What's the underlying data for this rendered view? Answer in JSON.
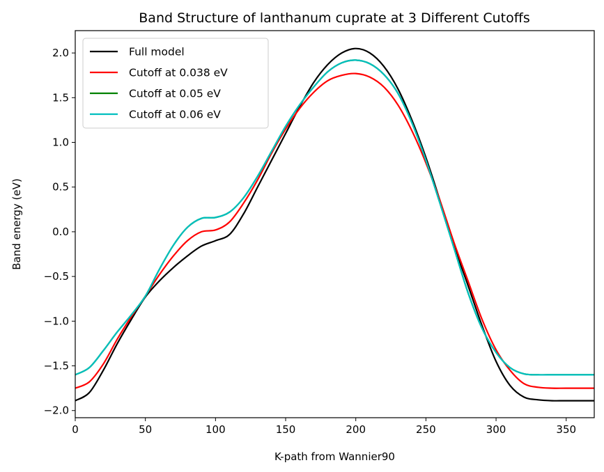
{
  "chart_data": {
    "type": "line",
    "title": "Band Structure of lanthanum cuprate at 3 Different Cutoffs",
    "xlabel": "K-path from Wannier90",
    "ylabel": "Band energy (eV)",
    "xlim": [
      0,
      370
    ],
    "ylim": [
      -2.08,
      2.25
    ],
    "xticks": [
      0,
      50,
      100,
      150,
      200,
      250,
      300,
      350
    ],
    "yticks": [
      -2.0,
      -1.5,
      -1.0,
      -0.5,
      0.0,
      0.5,
      1.0,
      1.5,
      2.0
    ],
    "xtick_labels": [
      "0",
      "50",
      "100",
      "150",
      "200",
      "250",
      "300",
      "350"
    ],
    "ytick_labels": [
      "−2.0",
      "−1.5",
      "−1.0",
      "−0.5",
      "0.0",
      "0.5",
      "1.0",
      "1.5",
      "2.0"
    ],
    "grid": false,
    "legend_position": "top-left",
    "series": [
      {
        "name": "Full model",
        "color": "#000000",
        "x": [
          0,
          10,
          20,
          30,
          40,
          50,
          60,
          70,
          80,
          90,
          100,
          110,
          120,
          130,
          140,
          150,
          160,
          170,
          180,
          190,
          200,
          210,
          220,
          230,
          240,
          250,
          260,
          270,
          280,
          290,
          300,
          310,
          320,
          330,
          340,
          350,
          370
        ],
        "y": [
          -1.89,
          -1.8,
          -1.55,
          -1.25,
          -0.98,
          -0.73,
          -0.55,
          -0.4,
          -0.27,
          -0.16,
          -0.1,
          -0.03,
          0.2,
          0.5,
          0.8,
          1.1,
          1.4,
          1.67,
          1.87,
          2.0,
          2.05,
          2.0,
          1.85,
          1.6,
          1.25,
          0.83,
          0.35,
          -0.15,
          -0.6,
          -1.05,
          -1.45,
          -1.72,
          -1.85,
          -1.88,
          -1.89,
          -1.89,
          -1.89
        ]
      },
      {
        "name": "Cutoff at 0.038 eV",
        "color": "#ff0000",
        "x": [
          0,
          10,
          20,
          30,
          40,
          50,
          60,
          70,
          80,
          90,
          100,
          110,
          120,
          130,
          140,
          150,
          160,
          170,
          180,
          190,
          200,
          210,
          220,
          230,
          240,
          250,
          260,
          270,
          280,
          290,
          300,
          310,
          320,
          330,
          340,
          350,
          370
        ],
        "y": [
          -1.75,
          -1.68,
          -1.48,
          -1.2,
          -0.95,
          -0.72,
          -0.48,
          -0.27,
          -0.1,
          0.0,
          0.02,
          0.11,
          0.32,
          0.58,
          0.88,
          1.15,
          1.38,
          1.56,
          1.69,
          1.75,
          1.77,
          1.73,
          1.62,
          1.42,
          1.13,
          0.77,
          0.35,
          -0.12,
          -0.55,
          -0.98,
          -1.32,
          -1.55,
          -1.7,
          -1.74,
          -1.75,
          -1.75,
          -1.75
        ]
      },
      {
        "name": "Cutoff at 0.05 eV",
        "color": "#008000",
        "x": [
          0,
          10,
          20,
          30,
          40,
          50,
          60,
          70,
          80,
          90,
          100,
          110,
          120,
          130,
          140,
          150,
          160,
          170,
          180,
          190,
          200,
          210,
          220,
          230,
          240,
          250,
          260,
          270,
          280,
          290,
          300,
          310,
          320,
          330,
          340,
          350,
          370
        ],
        "y": [
          -1.6,
          -1.52,
          -1.33,
          -1.12,
          -0.93,
          -0.72,
          -0.42,
          -0.15,
          0.05,
          0.15,
          0.16,
          0.22,
          0.38,
          0.62,
          0.9,
          1.18,
          1.42,
          1.62,
          1.79,
          1.89,
          1.92,
          1.88,
          1.76,
          1.55,
          1.22,
          0.8,
          0.32,
          -0.18,
          -0.68,
          -1.08,
          -1.35,
          -1.52,
          -1.59,
          -1.6,
          -1.6,
          -1.6,
          -1.6
        ]
      },
      {
        "name": "Cutoff at 0.06 eV",
        "color": "#00bfbf",
        "x": [
          0,
          10,
          20,
          30,
          40,
          50,
          60,
          70,
          80,
          90,
          100,
          110,
          120,
          130,
          140,
          150,
          160,
          170,
          180,
          190,
          200,
          210,
          220,
          230,
          240,
          250,
          260,
          270,
          280,
          290,
          300,
          310,
          320,
          330,
          340,
          350,
          370
        ],
        "y": [
          -1.6,
          -1.52,
          -1.33,
          -1.12,
          -0.93,
          -0.72,
          -0.42,
          -0.15,
          0.05,
          0.15,
          0.16,
          0.22,
          0.38,
          0.62,
          0.9,
          1.18,
          1.42,
          1.62,
          1.79,
          1.89,
          1.92,
          1.88,
          1.76,
          1.55,
          1.22,
          0.8,
          0.32,
          -0.18,
          -0.68,
          -1.08,
          -1.35,
          -1.52,
          -1.59,
          -1.6,
          -1.6,
          -1.6,
          -1.6
        ]
      }
    ]
  }
}
